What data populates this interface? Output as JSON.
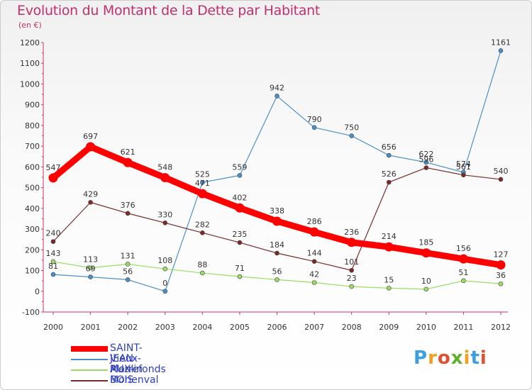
{
  "title": "Evolution du Montant de la Dette par Habitant",
  "unit": "(en €)",
  "chart_data": {
    "type": "line",
    "title": "Evolution du Montant de la Dette par Habitant",
    "ylabel": "(en €)",
    "categories": [
      "2000",
      "2001",
      "2002",
      "2003",
      "2004",
      "2005",
      "2006",
      "2007",
      "2008",
      "2009",
      "2010",
      "2011",
      "2012"
    ],
    "ylim": [
      -100,
      1200
    ],
    "yticks": [
      -100,
      0,
      100,
      200,
      300,
      400,
      500,
      600,
      700,
      800,
      900,
      1000,
      1100,
      1200
    ],
    "grid": false,
    "legend_position": "bottom-left",
    "series": [
      {
        "name": "SAINT-JEAN-AUX-BOIS",
        "color": "#ff0000",
        "values": [
          547,
          697,
          621,
          548,
          471,
          402,
          338,
          286,
          236,
          214,
          185,
          156,
          127
        ]
      },
      {
        "name": "Vieux-Moulin",
        "color": "#4a90c8",
        "values": [
          81,
          69,
          56,
          0,
          525,
          559,
          942,
          790,
          750,
          656,
          622,
          574,
          1161
        ]
      },
      {
        "name": "Pierrefonds",
        "color": "#99dd66",
        "values": [
          143,
          113,
          131,
          108,
          88,
          71,
          56,
          42,
          23,
          15,
          10,
          51,
          36
        ]
      },
      {
        "name": "Morienval",
        "color": "#7a2a2a",
        "values": [
          240,
          429,
          376,
          330,
          282,
          235,
          184,
          144,
          101,
          526,
          596,
          561,
          540
        ]
      }
    ]
  },
  "logo": {
    "p": "P",
    "r": "r",
    "o": "o",
    "x": "x",
    "i": "i",
    "t": "t",
    "i2": "i"
  }
}
